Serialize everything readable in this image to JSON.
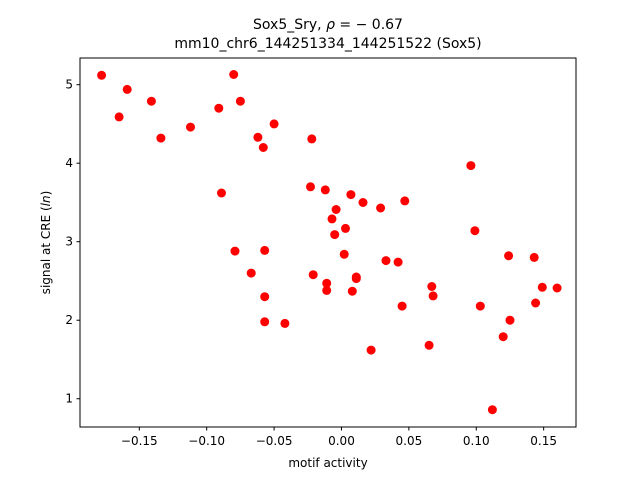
{
  "chart_data": {
    "type": "scatter",
    "title_line1_prefix": "Sox5_Sry, ",
    "title_line1_rho": "ρ",
    "title_line1_suffix": " = − 0.67",
    "title_line2": "mm10_chr6_144251334_144251522 (Sox5)",
    "xlabel": "motif activity",
    "ylabel_prefix": "signal at CRE (",
    "ylabel_italic": "ln",
    "ylabel_suffix": ")",
    "xlim": [
      -0.194,
      0.174
    ],
    "ylim": [
      0.64,
      5.34
    ],
    "xticks": [
      -0.15,
      -0.1,
      -0.05,
      0.0,
      0.05,
      0.1,
      0.15
    ],
    "xtick_labels": [
      "−0.15",
      "−0.10",
      "−0.05",
      "0.00",
      "0.05",
      "0.10",
      "0.15"
    ],
    "yticks": [
      1,
      2,
      3,
      4,
      5
    ],
    "ytick_labels": [
      "1",
      "2",
      "3",
      "4",
      "5"
    ],
    "grid": false,
    "marker_color": "#ff0000",
    "x": [
      -0.178,
      -0.159,
      -0.165,
      -0.141,
      -0.134,
      -0.112,
      -0.091,
      -0.08,
      -0.075,
      -0.062,
      -0.058,
      -0.05,
      -0.022,
      -0.089,
      -0.079,
      -0.067,
      -0.057,
      -0.057,
      -0.042,
      -0.057,
      -0.023,
      -0.012,
      -0.011,
      -0.011,
      -0.007,
      -0.004,
      -0.005,
      0.002,
      0.003,
      0.007,
      0.008,
      0.011,
      0.011,
      0.016,
      0.022,
      0.029,
      0.033,
      0.042,
      0.045,
      0.047,
      0.065,
      0.067,
      0.068,
      0.096,
      0.099,
      0.103,
      0.12,
      0.124,
      0.125,
      0.112,
      0.143,
      0.144,
      0.149,
      0.16,
      -0.021
    ],
    "y": [
      5.12,
      4.94,
      4.59,
      4.79,
      4.32,
      4.46,
      4.7,
      5.13,
      4.79,
      4.33,
      4.2,
      4.5,
      4.31,
      3.62,
      2.88,
      2.6,
      2.89,
      2.3,
      1.96,
      1.98,
      3.7,
      3.66,
      2.47,
      2.38,
      3.29,
      3.41,
      3.09,
      2.84,
      3.17,
      3.6,
      2.37,
      2.53,
      2.55,
      3.5,
      1.62,
      3.43,
      2.76,
      2.74,
      2.18,
      3.52,
      1.68,
      2.43,
      2.31,
      3.97,
      3.14,
      2.18,
      1.79,
      2.82,
      2.0,
      0.86,
      2.8,
      2.22,
      2.42,
      2.41,
      2.58
    ]
  }
}
